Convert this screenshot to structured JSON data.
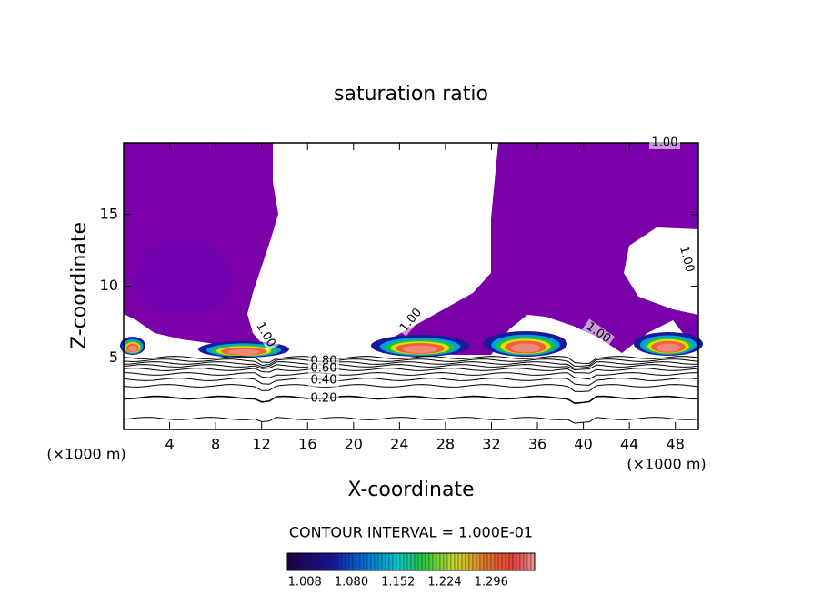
{
  "chart_data": {
    "type": "contour",
    "title": "saturation ratio",
    "x_label": "X-coordinate",
    "y_label": "Z-coordinate",
    "x_unit_labels": [
      "(×1000 m)",
      "(×1000 m)"
    ],
    "xlim": [
      0,
      50
    ],
    "ylim": [
      0,
      20
    ],
    "xticks": [
      4,
      8,
      12,
      16,
      20,
      24,
      28,
      32,
      36,
      40,
      44,
      48
    ],
    "yticks": [
      5,
      10,
      15
    ],
    "contour_labels": [
      {
        "value": 1,
        "label": "1.00"
      },
      {
        "value": 1,
        "label": "1.00"
      },
      {
        "value": 1,
        "label": "1.00"
      },
      {
        "value": 1,
        "label": "1.00"
      },
      {
        "value": 1,
        "label": "1.00"
      },
      {
        "value": 0.8,
        "label": "0.80"
      },
      {
        "value": 0.6,
        "label": "0.60"
      },
      {
        "value": 0.4,
        "label": "0.40"
      },
      {
        "value": 0.2,
        "label": "0.20"
      }
    ],
    "contour_interval_text": "CONTOUR INTERVAL = 1.000E-01",
    "colorbar_lim": [
      0.981,
      1.363
    ],
    "colorbar_ticks": [
      {
        "value": 1.008,
        "label": "1.008"
      },
      {
        "value": 1.08,
        "label": "1.080"
      },
      {
        "value": 1.152,
        "label": "1.152"
      },
      {
        "value": 1.224,
        "label": "1.224"
      },
      {
        "value": 1.296,
        "label": "1.296"
      }
    ]
  }
}
